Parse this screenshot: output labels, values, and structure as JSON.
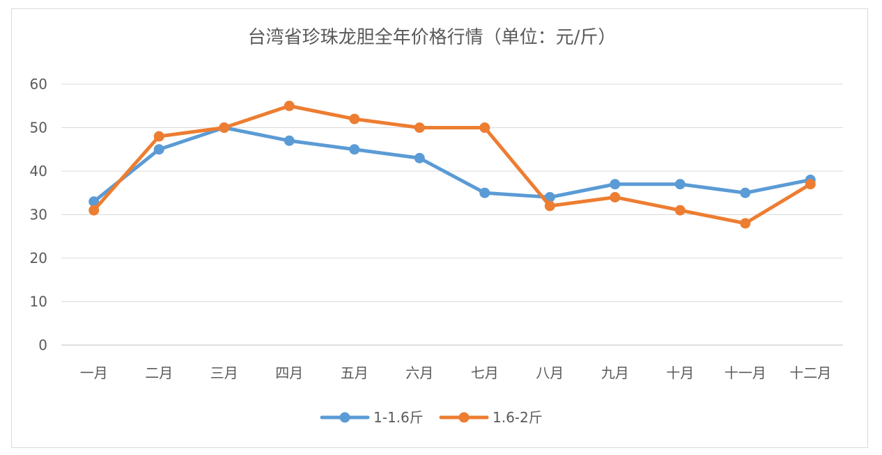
{
  "chart_data": {
    "type": "line",
    "title": "台湾省珍珠龙胆全年价格行情（单位：元/斤）",
    "categories": [
      "一月",
      "二月",
      "三月",
      "四月",
      "五月",
      "六月",
      "七月",
      "八月",
      "九月",
      "十月",
      "十一月",
      "十二月"
    ],
    "y_ticks": [
      "0",
      "10",
      "20",
      "30",
      "40",
      "50",
      "60"
    ],
    "ylim": [
      0,
      60
    ],
    "grid": true,
    "legend_position": "bottom",
    "series": [
      {
        "name": "1-1.6斤",
        "color": "#5b9bd5",
        "values": [
          33,
          45,
          50,
          47,
          45,
          43,
          35,
          34,
          37,
          37,
          35,
          38
        ]
      },
      {
        "name": "1.6-2斤",
        "color": "#ed7d31",
        "values": [
          31,
          48,
          50,
          55,
          52,
          50,
          50,
          32,
          34,
          31,
          28,
          37
        ]
      }
    ]
  }
}
